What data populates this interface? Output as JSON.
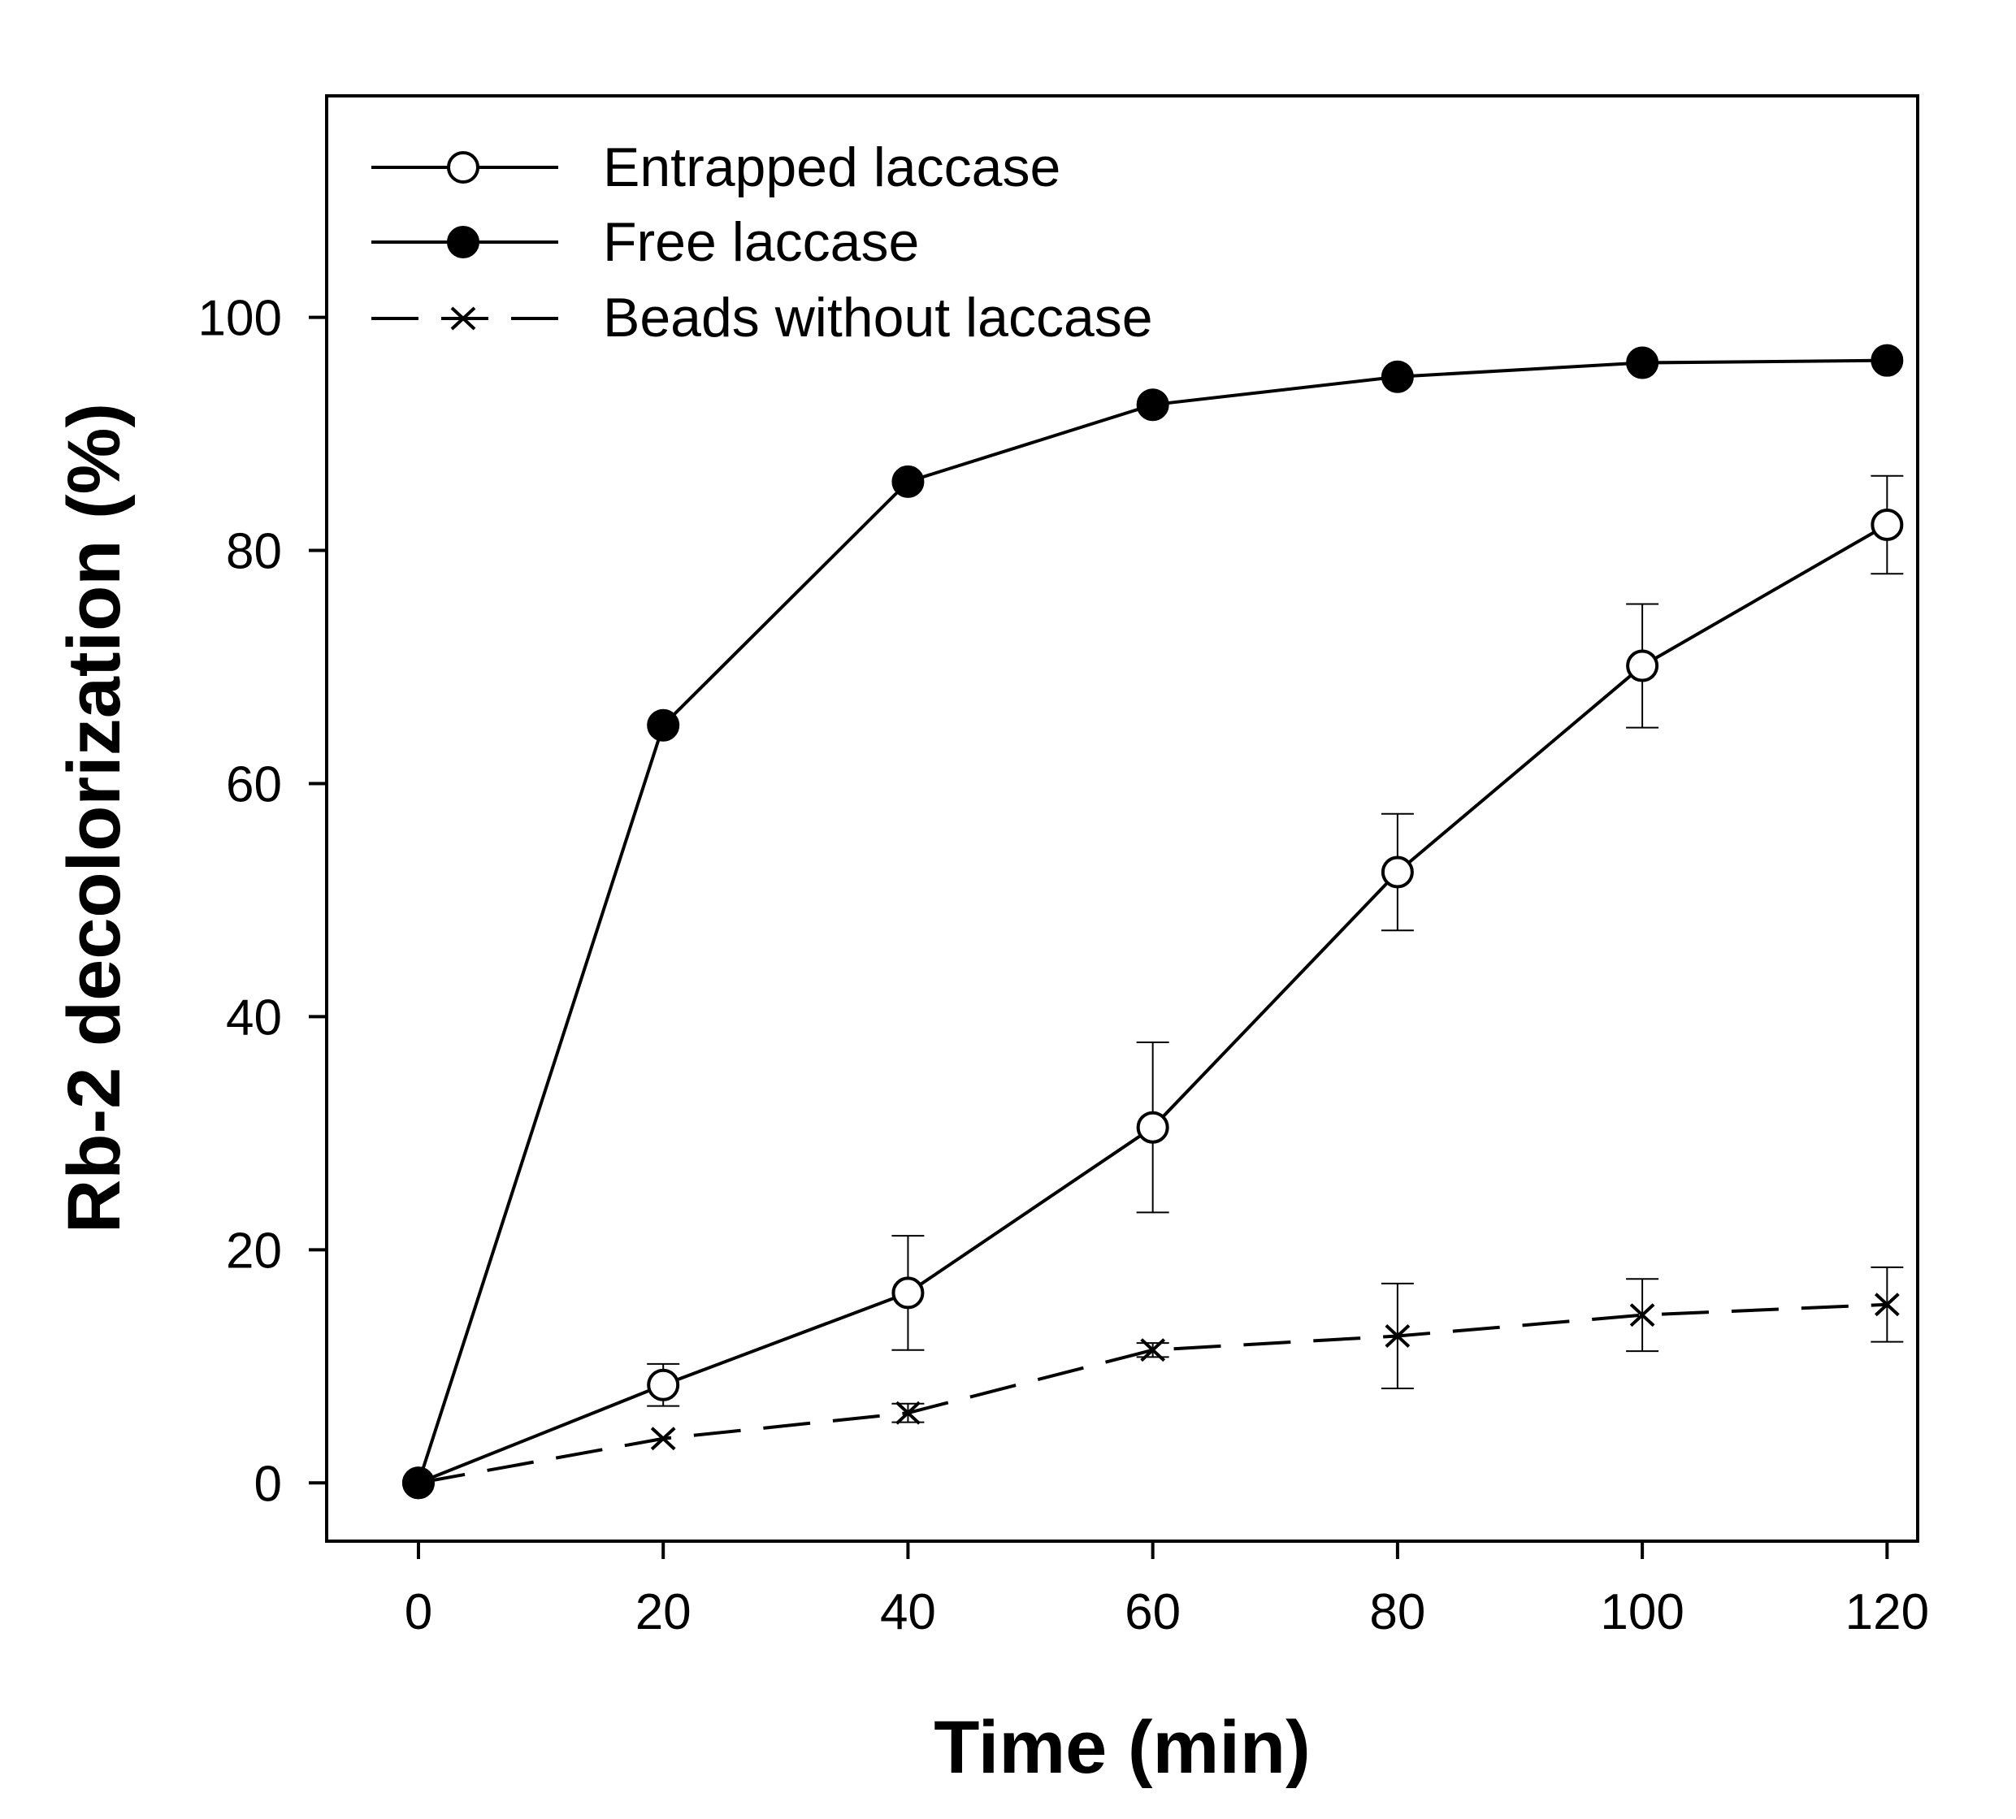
{
  "chart_data": {
    "type": "line",
    "title": "",
    "xlabel": "Time (min)",
    "ylabel": "Rb-2 decolorization (%)",
    "xlim": [
      -7.5,
      122.5
    ],
    "ylim": [
      -5,
      119
    ],
    "xticks": [
      0,
      20,
      40,
      60,
      80,
      100,
      120
    ],
    "yticks": [
      0,
      20,
      40,
      60,
      80,
      100
    ],
    "legend_position": "top-left",
    "grid": false,
    "x": [
      0,
      20,
      40,
      60,
      80,
      100,
      120
    ],
    "series": [
      {
        "name": "Entrapped laccase",
        "marker": "open-circle",
        "line": "solid",
        "values": [
          0,
          8.4,
          16.3,
          30.5,
          52.4,
          70.1,
          82.2
        ],
        "errors": [
          0,
          1.8,
          4.9,
          7.3,
          5.0,
          5.3,
          4.2
        ]
      },
      {
        "name": "Free laccase",
        "marker": "filled-circle",
        "line": "solid",
        "values": [
          0,
          65.0,
          85.9,
          92.5,
          94.9,
          96.1,
          96.3
        ],
        "errors": [
          0,
          0,
          0,
          0,
          0,
          0,
          0
        ]
      },
      {
        "name": "Beads without laccase",
        "marker": "x",
        "line": "dashed",
        "values": [
          0,
          3.8,
          6.0,
          11.4,
          12.6,
          14.4,
          15.3
        ],
        "errors": [
          0,
          0,
          0.8,
          0.6,
          4.5,
          3.1,
          3.2
        ]
      }
    ]
  }
}
